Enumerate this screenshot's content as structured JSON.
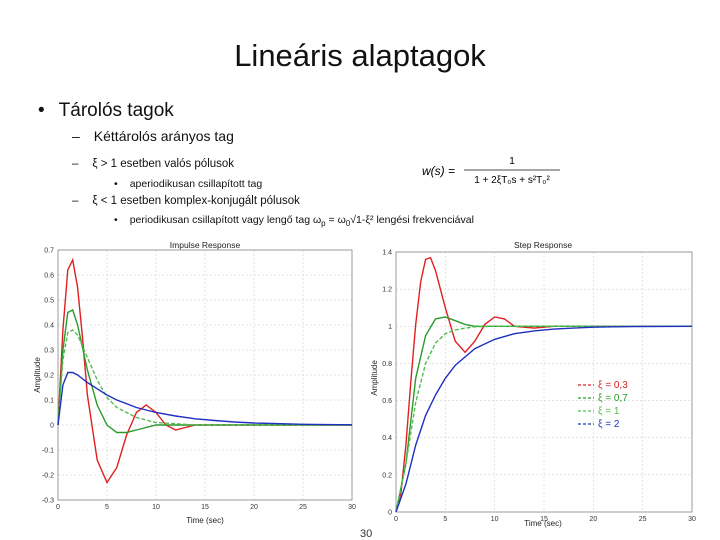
{
  "slide": {
    "title": "Lineáris alaptagok",
    "bullet1": "Tárolós tagok",
    "bullet2": "Kéttárolós arányos tag",
    "line1": "ξ > 1 esetben valós pólusok",
    "line1_sub": "aperiodikusan csillapított tag",
    "line2": "ξ < 1 esetben komplex-konjugált pólusok",
    "line2_sub_a": "periodikusan csillapított vagy lengő tag ω",
    "line2_sub_b": "p",
    "line2_sub_c": " = ω",
    "line2_sub_d": "0",
    "line2_sub_e": "√1-ξ²  lengési frekvenciával",
    "dash": "–",
    "bullet_dot": "•",
    "page_number": "30"
  },
  "formula": {
    "lhs": "w(s) =",
    "numerator": "1",
    "denominator": "1 + 2ξT₀s + s²T₀²"
  },
  "chart_data": [
    {
      "type": "line",
      "title": "Impulse Response",
      "xlabel": "Time (sec)",
      "ylabel": "Amplitude",
      "xlim": [
        0,
        30
      ],
      "ylim": [
        -0.3,
        0.7
      ],
      "xticks": [
        "0",
        "5",
        "10",
        "15",
        "20",
        "25",
        "30"
      ],
      "yticks": [
        "-0.3",
        "-0.2",
        "-0.1",
        "0",
        "0.1",
        "0.2",
        "0.3",
        "0.4",
        "0.5",
        "0.6",
        "0.7"
      ],
      "grid": true,
      "series": [
        {
          "name": "ξ = 0,3",
          "color": "#e02020",
          "x": [
            0,
            0.5,
            1,
            1.5,
            2,
            2.5,
            3,
            4,
            5,
            6,
            7,
            8,
            9,
            10,
            11,
            12,
            14,
            16,
            20,
            30
          ],
          "y": [
            0,
            0.38,
            0.62,
            0.66,
            0.55,
            0.35,
            0.12,
            -0.14,
            -0.23,
            -0.17,
            -0.04,
            0.05,
            0.08,
            0.05,
            0.0,
            -0.02,
            0.0,
            0.0,
            0.0,
            0.0
          ]
        },
        {
          "name": "ξ = 0,7",
          "color": "#2a9a2a",
          "x": [
            0,
            0.5,
            1,
            1.5,
            2,
            3,
            4,
            5,
            6,
            7,
            8,
            10,
            14,
            20,
            30
          ],
          "y": [
            0,
            0.3,
            0.45,
            0.46,
            0.4,
            0.22,
            0.08,
            0.0,
            -0.03,
            -0.03,
            -0.02,
            0.0,
            0.0,
            0.0,
            0.0
          ]
        },
        {
          "name": "ξ = 1",
          "color": "#55bb55",
          "x": [
            0,
            0.5,
            1,
            1.5,
            2,
            3,
            4,
            5,
            6,
            8,
            10,
            14,
            20,
            30
          ],
          "y": [
            0,
            0.26,
            0.37,
            0.38,
            0.36,
            0.27,
            0.18,
            0.11,
            0.07,
            0.03,
            0.01,
            0.0,
            0.0,
            0.0
          ]
        },
        {
          "name": "ξ = 2",
          "color": "#2030c0",
          "x": [
            0,
            0.5,
            1,
            1.5,
            2,
            3,
            4,
            5,
            6,
            8,
            10,
            12,
            14,
            16,
            18,
            20,
            25,
            30
          ],
          "y": [
            0,
            0.16,
            0.21,
            0.21,
            0.2,
            0.17,
            0.145,
            0.12,
            0.1,
            0.07,
            0.05,
            0.036,
            0.025,
            0.018,
            0.012,
            0.008,
            0.003,
            0.001
          ]
        }
      ]
    },
    {
      "type": "line",
      "title": "Step Response",
      "xlabel": "Time (sec)",
      "ylabel": "Amplitude",
      "xlim": [
        0,
        30
      ],
      "ylim": [
        0,
        1.4
      ],
      "xticks": [
        "0",
        "5",
        "10",
        "15",
        "20",
        "25",
        "30"
      ],
      "yticks": [
        "0",
        "0.2",
        "0.4",
        "0.6",
        "0.8",
        "1",
        "1.2",
        "1.4"
      ],
      "grid": true,
      "legend_position": "right",
      "series": [
        {
          "name": "ξ = 0,3",
          "color": "#e02020",
          "x": [
            0,
            0.5,
            1,
            1.5,
            2,
            2.5,
            3,
            3.5,
            4,
            5,
            6,
            7,
            8,
            9,
            10,
            11,
            12,
            14,
            16,
            20,
            30
          ],
          "y": [
            0,
            0.1,
            0.36,
            0.7,
            1.01,
            1.24,
            1.36,
            1.37,
            1.3,
            1.1,
            0.92,
            0.86,
            0.92,
            1.01,
            1.05,
            1.04,
            1.0,
            0.99,
            1.0,
            1.0,
            1.0
          ]
        },
        {
          "name": "ξ = 0,7",
          "color": "#2a9a2a",
          "x": [
            0,
            1,
            2,
            3,
            4,
            5,
            6,
            7,
            8,
            10,
            12,
            15,
            20,
            30
          ],
          "y": [
            0,
            0.26,
            0.72,
            0.95,
            1.04,
            1.05,
            1.03,
            1.01,
            1.0,
            1.0,
            1.0,
            1.0,
            1.0,
            1.0
          ]
        },
        {
          "name": "ξ = 1",
          "color": "#55bb55",
          "x": [
            0,
            1,
            2,
            3,
            4,
            5,
            6,
            7,
            8,
            10,
            12,
            15,
            20,
            30
          ],
          "y": [
            0,
            0.26,
            0.59,
            0.8,
            0.91,
            0.96,
            0.98,
            0.99,
            0.997,
            1.0,
            1.0,
            1.0,
            1.0,
            1.0
          ]
        },
        {
          "name": "ξ = 2",
          "color": "#2030c0",
          "x": [
            0,
            1,
            2,
            3,
            4,
            5,
            6,
            8,
            10,
            12,
            14,
            16,
            18,
            20,
            22,
            25,
            30
          ],
          "y": [
            0,
            0.15,
            0.36,
            0.52,
            0.63,
            0.72,
            0.79,
            0.88,
            0.93,
            0.96,
            0.975,
            0.985,
            0.99,
            0.995,
            0.997,
            0.999,
            1.0
          ]
        }
      ]
    }
  ]
}
